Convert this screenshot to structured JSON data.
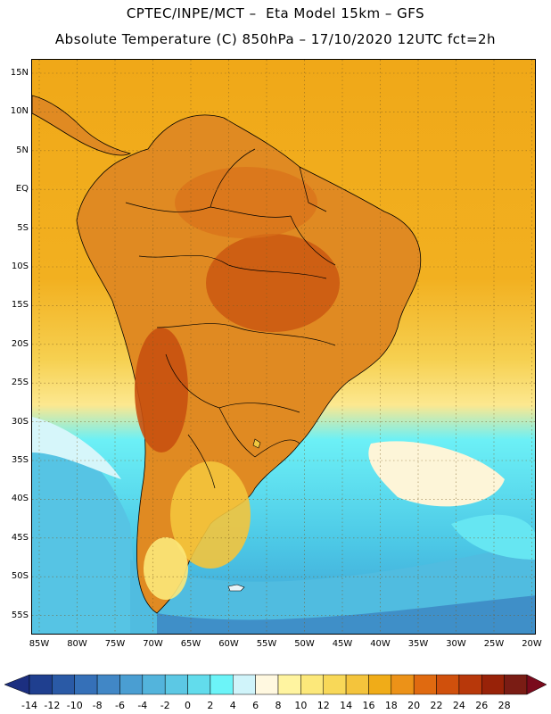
{
  "header": {
    "line1": "CPTEC/INPE/MCT –  Eta Model 15km – GFS",
    "line2": "Absolute Temperature (C) 850hPa – 17/10/2020 12UTC fct=2h"
  },
  "axes": {
    "lat_labels": [
      "15N",
      "10N",
      "5N",
      "EQ",
      "5S",
      "10S",
      "15S",
      "20S",
      "25S",
      "30S",
      "35S",
      "40S",
      "45S",
      "50S",
      "55S"
    ],
    "lon_labels": [
      "85W",
      "80W",
      "75W",
      "70W",
      "65W",
      "60W",
      "55W",
      "50W",
      "45W",
      "40W",
      "35W",
      "30W",
      "25W",
      "20W"
    ]
  },
  "colorbar": {
    "labels": [
      "-14",
      "-12",
      "-10",
      "-8",
      "-6",
      "-4",
      "-2",
      "0",
      "2",
      "4",
      "6",
      "8",
      "10",
      "12",
      "14",
      "16",
      "18",
      "20",
      "22",
      "24",
      "26",
      "28"
    ],
    "colors": [
      "#1f3f8f",
      "#2a5aa6",
      "#3570b8",
      "#4187c6",
      "#4a9ed2",
      "#53b4dc",
      "#5cc8e4",
      "#62dcec",
      "#6cf4f8",
      "#d0f4fa",
      "#fff8e0",
      "#fff4a0",
      "#fce87a",
      "#f8d858",
      "#f4c43c",
      "#f0ac18",
      "#ec9218",
      "#e06a10",
      "#d0500c",
      "#b8380a",
      "#982208",
      "#7a1c14"
    ],
    "left_arrow_color": "#1c2f80",
    "right_arrow_color": "#7a0a1c"
  },
  "map": {
    "projection": "cylindrical equidistant",
    "lon_range": [
      -86,
      -19.5
    ],
    "lat_range": [
      16.5,
      -58
    ],
    "grid": "dotted",
    "ocean_color_tropical": "#f2aa16",
    "land_color_hot": "#d8701a"
  }
}
